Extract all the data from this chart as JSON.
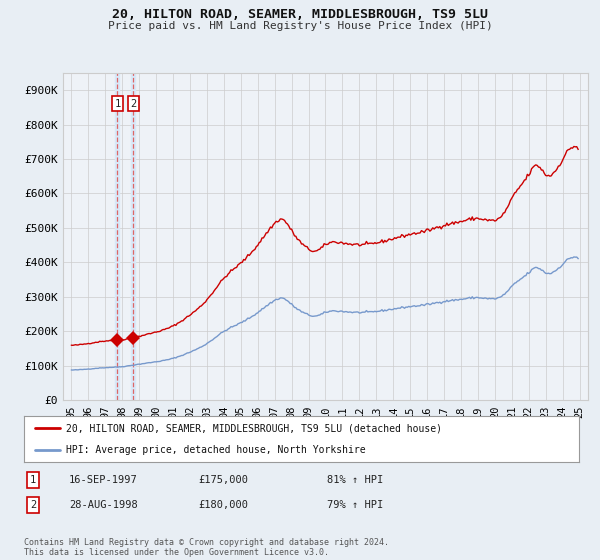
{
  "title": "20, HILTON ROAD, SEAMER, MIDDLESBROUGH, TS9 5LU",
  "subtitle": "Price paid vs. HM Land Registry's House Price Index (HPI)",
  "legend_label_red": "20, HILTON ROAD, SEAMER, MIDDLESBROUGH, TS9 5LU (detached house)",
  "legend_label_blue": "HPI: Average price, detached house, North Yorkshire",
  "footnote": "Contains HM Land Registry data © Crown copyright and database right 2024.\nThis data is licensed under the Open Government Licence v3.0.",
  "transactions": [
    {
      "label": "1",
      "date": "16-SEP-1997",
      "price": 175000,
      "hpi_pct": "81% ↑ HPI",
      "x": 1997.71
    },
    {
      "label": "2",
      "date": "28-AUG-1998",
      "price": 180000,
      "hpi_pct": "79% ↑ HPI",
      "x": 1998.65
    }
  ],
  "ylim": [
    0,
    950000
  ],
  "yticks": [
    0,
    100000,
    200000,
    300000,
    400000,
    500000,
    600000,
    700000,
    800000,
    900000
  ],
  "ytick_labels": [
    "£0",
    "£100K",
    "£200K",
    "£300K",
    "£400K",
    "£500K",
    "£600K",
    "£700K",
    "£800K",
    "£900K"
  ],
  "xlim": [
    1994.5,
    2025.5
  ],
  "xtick_labels": [
    "95",
    "96",
    "97",
    "98",
    "99",
    "00",
    "01",
    "02",
    "03",
    "04",
    "05",
    "06",
    "07",
    "08",
    "09",
    "10",
    "11",
    "12",
    "13",
    "14",
    "15",
    "16",
    "17",
    "18",
    "19",
    "20",
    "21",
    "22",
    "23",
    "24",
    "25"
  ],
  "xticks": [
    1995,
    1996,
    1997,
    1998,
    1999,
    2000,
    2001,
    2002,
    2003,
    2004,
    2005,
    2006,
    2007,
    2008,
    2009,
    2010,
    2011,
    2012,
    2013,
    2014,
    2015,
    2016,
    2017,
    2018,
    2019,
    2020,
    2021,
    2022,
    2023,
    2024,
    2025
  ],
  "red_color": "#cc0000",
  "blue_color": "#7799cc",
  "bg_color": "#e8eef4",
  "plot_bg": "#eef2f7",
  "vline_color": "#dd6666",
  "vband_color": "#d8e8f8",
  "grid_color": "#cccccc"
}
